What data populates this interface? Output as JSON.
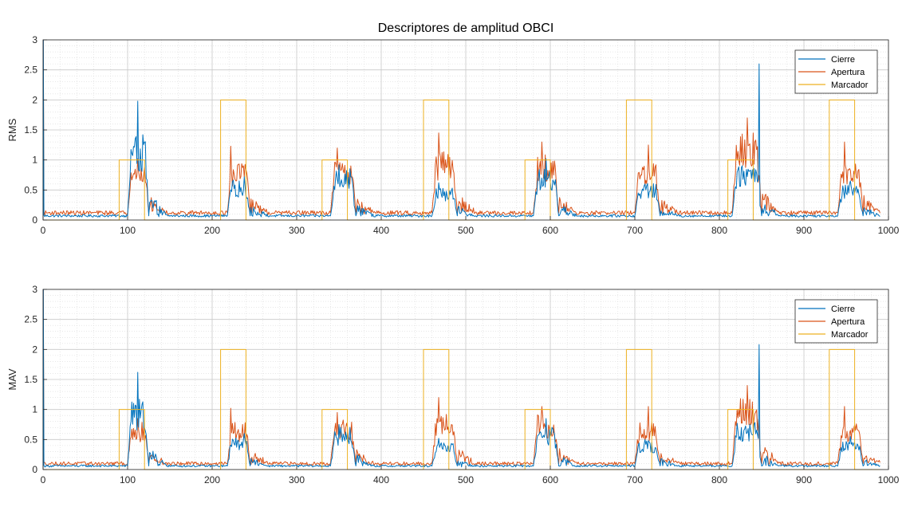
{
  "title": "Descriptores de amplitud OBCI",
  "colors": {
    "cierre": "#0072BD",
    "apertura": "#D95319",
    "marcador": "#EDB120"
  },
  "chart_data": [
    {
      "type": "line",
      "title": "Descriptores de amplitud OBCI",
      "ylabel": "RMS",
      "xlabel": "",
      "xlim": [
        0,
        1000
      ],
      "ylim": [
        0,
        3
      ],
      "xticks": [
        "0",
        "100",
        "200",
        "300",
        "400",
        "500",
        "600",
        "700",
        "800",
        "900",
        "1000"
      ],
      "yticks": [
        "0",
        "0.5",
        "1",
        "1.5",
        "2",
        "2.5",
        "3"
      ],
      "grid": true,
      "minor_grid": true,
      "legend_position": "top-right",
      "baseline": {
        "cierre": 0.07,
        "apertura": 0.12
      },
      "series": [
        {
          "name": "Cierre",
          "color": "#0072BD",
          "bursts": [
            {
              "start": 100,
              "end": 125,
              "level": 1.15,
              "peak": 1.98,
              "peak_at": 112
            },
            {
              "start": 218,
              "end": 245,
              "level": 0.55,
              "peak": 0.72,
              "peak_at": 238
            },
            {
              "start": 340,
              "end": 370,
              "level": 0.72,
              "peak": 0.92,
              "peak_at": 350
            },
            {
              "start": 460,
              "end": 490,
              "level": 0.45,
              "peak": 0.62,
              "peak_at": 468
            },
            {
              "start": 580,
              "end": 610,
              "level": 0.7,
              "peak": 1.02,
              "peak_at": 595
            },
            {
              "start": 700,
              "end": 730,
              "level": 0.5,
              "peak": 0.6,
              "peak_at": 712
            },
            {
              "start": 815,
              "end": 850,
              "level": 0.8,
              "peak": 2.6,
              "peak_at": 847
            },
            {
              "start": 940,
              "end": 970,
              "level": 0.5,
              "peak": 0.65,
              "peak_at": 955
            }
          ]
        },
        {
          "name": "Apertura",
          "color": "#D95319",
          "bursts": [
            {
              "start": 100,
              "end": 125,
              "level": 0.8,
              "peak": 1.02,
              "peak_at": 112
            },
            {
              "start": 218,
              "end": 245,
              "level": 0.8,
              "peak": 1.23,
              "peak_at": 222
            },
            {
              "start": 340,
              "end": 370,
              "level": 0.85,
              "peak": 1.2,
              "peak_at": 348
            },
            {
              "start": 460,
              "end": 490,
              "level": 0.95,
              "peak": 1.45,
              "peak_at": 468
            },
            {
              "start": 580,
              "end": 610,
              "level": 0.9,
              "peak": 1.3,
              "peak_at": 590
            },
            {
              "start": 700,
              "end": 730,
              "level": 0.8,
              "peak": 1.25,
              "peak_at": 716
            },
            {
              "start": 815,
              "end": 850,
              "level": 1.2,
              "peak": 1.7,
              "peak_at": 833
            },
            {
              "start": 940,
              "end": 970,
              "level": 0.8,
              "peak": 1.3,
              "peak_at": 948
            }
          ]
        },
        {
          "name": "Marcador",
          "color": "#EDB120",
          "step_pulses": [
            {
              "start": 90,
              "end": 120,
              "value": 1
            },
            {
              "start": 210,
              "end": 240,
              "value": 2
            },
            {
              "start": 330,
              "end": 360,
              "value": 1
            },
            {
              "start": 450,
              "end": 480,
              "value": 2
            },
            {
              "start": 570,
              "end": 600,
              "value": 1
            },
            {
              "start": 690,
              "end": 720,
              "value": 2
            },
            {
              "start": 810,
              "end": 840,
              "value": 1
            },
            {
              "start": 930,
              "end": 960,
              "value": 2
            }
          ]
        }
      ]
    },
    {
      "type": "line",
      "title": "",
      "ylabel": "MAV",
      "xlabel": "",
      "xlim": [
        0,
        1000
      ],
      "ylim": [
        0,
        3
      ],
      "xticks": [
        "0",
        "100",
        "200",
        "300",
        "400",
        "500",
        "600",
        "700",
        "800",
        "900",
        "1000"
      ],
      "yticks": [
        "0",
        "0.5",
        "1",
        "1.5",
        "2",
        "2.5",
        "3"
      ],
      "grid": true,
      "minor_grid": true,
      "legend_position": "top-right",
      "baseline": {
        "cierre": 0.06,
        "apertura": 0.1
      },
      "series": [
        {
          "name": "Cierre",
          "color": "#0072BD",
          "bursts": [
            {
              "start": 100,
              "end": 125,
              "level": 0.95,
              "peak": 1.62,
              "peak_at": 112
            },
            {
              "start": 218,
              "end": 245,
              "level": 0.45,
              "peak": 0.6,
              "peak_at": 238
            },
            {
              "start": 340,
              "end": 370,
              "level": 0.58,
              "peak": 0.75,
              "peak_at": 350
            },
            {
              "start": 460,
              "end": 490,
              "level": 0.38,
              "peak": 0.52,
              "peak_at": 468
            },
            {
              "start": 580,
              "end": 610,
              "level": 0.58,
              "peak": 0.85,
              "peak_at": 595
            },
            {
              "start": 700,
              "end": 730,
              "level": 0.4,
              "peak": 0.5,
              "peak_at": 712
            },
            {
              "start": 815,
              "end": 850,
              "level": 0.65,
              "peak": 2.08,
              "peak_at": 847
            },
            {
              "start": 940,
              "end": 970,
              "level": 0.4,
              "peak": 0.55,
              "peak_at": 955
            }
          ]
        },
        {
          "name": "Apertura",
          "color": "#D95319",
          "bursts": [
            {
              "start": 100,
              "end": 125,
              "level": 0.65,
              "peak": 0.85,
              "peak_at": 112
            },
            {
              "start": 218,
              "end": 245,
              "level": 0.65,
              "peak": 1.02,
              "peak_at": 222
            },
            {
              "start": 340,
              "end": 370,
              "level": 0.68,
              "peak": 0.95,
              "peak_at": 348
            },
            {
              "start": 460,
              "end": 490,
              "level": 0.78,
              "peak": 1.2,
              "peak_at": 468
            },
            {
              "start": 580,
              "end": 610,
              "level": 0.75,
              "peak": 1.05,
              "peak_at": 590
            },
            {
              "start": 700,
              "end": 730,
              "level": 0.65,
              "peak": 1.05,
              "peak_at": 716
            },
            {
              "start": 815,
              "end": 850,
              "level": 0.98,
              "peak": 1.4,
              "peak_at": 833
            },
            {
              "start": 940,
              "end": 970,
              "level": 0.65,
              "peak": 1.05,
              "peak_at": 948
            }
          ]
        },
        {
          "name": "Marcador",
          "color": "#EDB120",
          "step_pulses": [
            {
              "start": 90,
              "end": 120,
              "value": 1
            },
            {
              "start": 210,
              "end": 240,
              "value": 2
            },
            {
              "start": 330,
              "end": 360,
              "value": 1
            },
            {
              "start": 450,
              "end": 480,
              "value": 2
            },
            {
              "start": 570,
              "end": 600,
              "value": 1
            },
            {
              "start": 690,
              "end": 720,
              "value": 2
            },
            {
              "start": 810,
              "end": 840,
              "value": 1
            },
            {
              "start": 930,
              "end": 960,
              "value": 2
            }
          ]
        }
      ]
    }
  ]
}
